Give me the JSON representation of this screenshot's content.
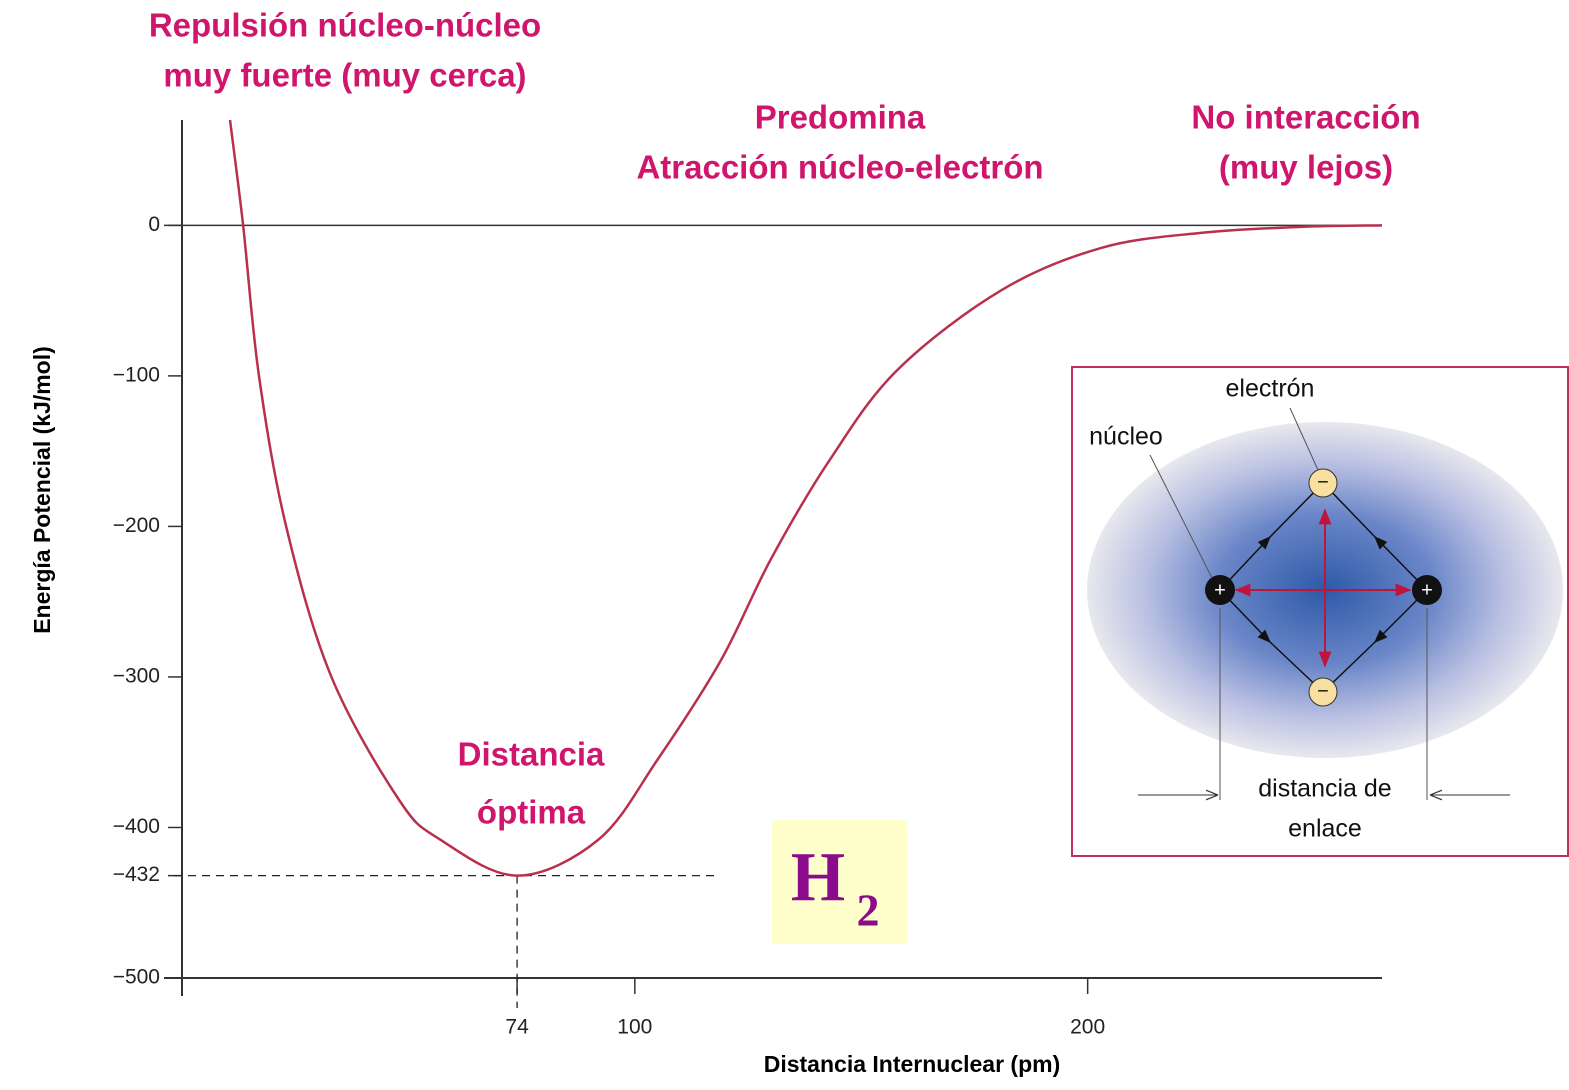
{
  "chart_data": {
    "type": "line",
    "x_label": "Distancia Internuclear (pm)",
    "y_label": "Energía Potencial (kJ/mol)",
    "xlim": [
      0,
      265
    ],
    "ylim": [
      -500,
      70
    ],
    "xticks": [
      74,
      100,
      200
    ],
    "yticks": [
      0,
      {
        "value": -100,
        "label": "−100"
      },
      {
        "value": -200,
        "label": "−200"
      },
      {
        "value": -300,
        "label": "−300"
      },
      {
        "value": -400,
        "label": "−400"
      },
      {
        "value": -432,
        "label": "−432"
      },
      {
        "value": -500,
        "label": "−500"
      }
    ],
    "zero_line": true,
    "x": [
      10.6,
      13.5,
      17,
      23,
      33,
      48,
      57,
      74,
      92,
      105,
      119,
      130,
      143,
      158,
      181,
      203,
      225,
      247,
      265
    ],
    "values": [
      70,
      0,
      -100,
      -200,
      -300,
      -382,
      -408,
      -432,
      -408,
      -355,
      -289,
      -222,
      -156,
      -96,
      -43,
      -15,
      -5,
      -1,
      0
    ],
    "color": "#b8304c",
    "minimum": {
      "x": 74,
      "y": -432
    },
    "annotations": [
      "Repulsión núcleo-núcleo",
      "muy fuerte (muy cerca)",
      "Predomina",
      "Atracción núcleo-electrón",
      "No interacción",
      "(muy lejos)",
      "Distancia",
      "óptima"
    ],
    "annotation_color": "#d0166c",
    "molecule": {
      "symbol": "H",
      "subscript": "2",
      "color": "#8c0a8c",
      "background": "#ffffcc"
    },
    "inset": {
      "electron": "electrón",
      "nucleus": "núcleo",
      "distance": [
        "distancia de",
        "enlace"
      ],
      "positive": "+",
      "negative": "−"
    }
  }
}
